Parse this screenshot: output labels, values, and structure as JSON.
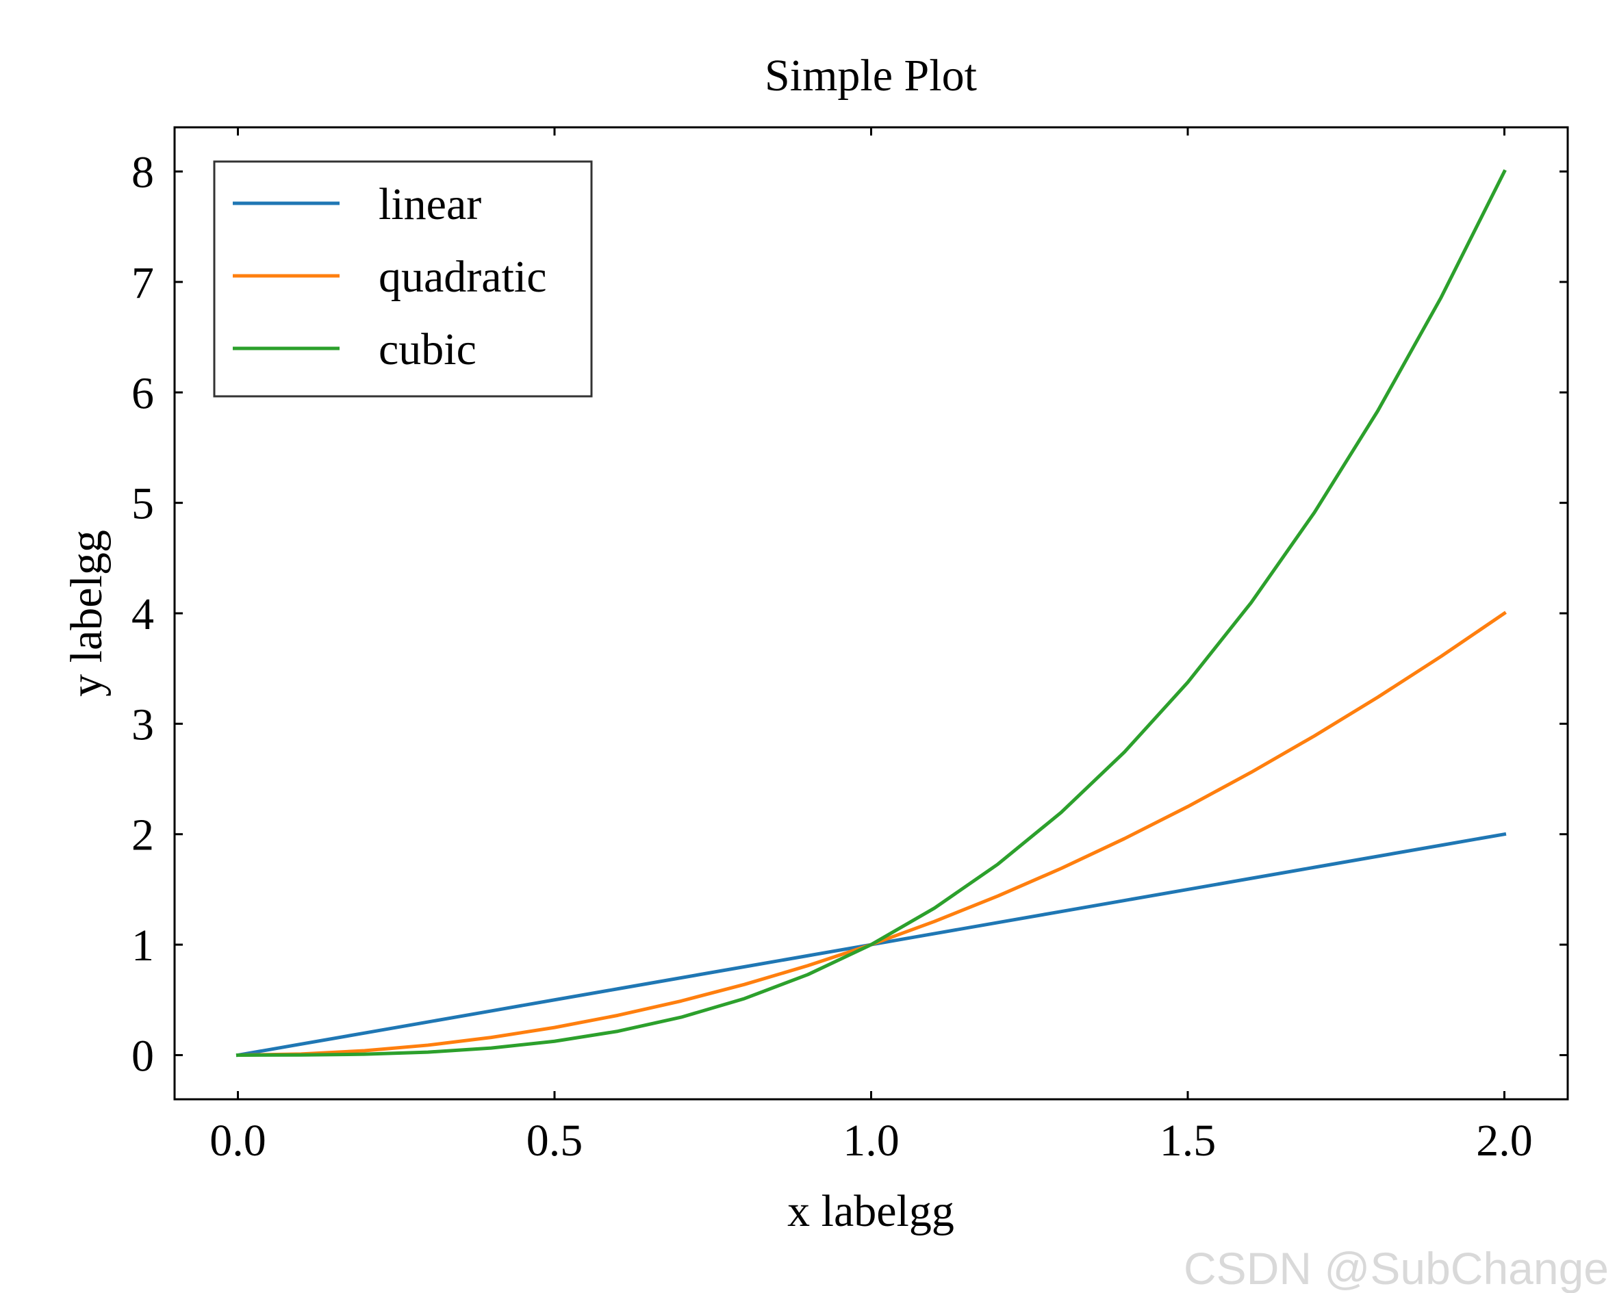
{
  "chart_data": {
    "type": "line",
    "title": "Simple Plot",
    "xlabel": "x labelgg",
    "ylabel": "y labelgg",
    "xlim": [
      -0.1,
      2.1
    ],
    "ylim": [
      -0.4,
      8.4
    ],
    "xticks": [
      0.0,
      0.5,
      1.0,
      1.5,
      2.0
    ],
    "xtick_labels": [
      "0.0",
      "0.5",
      "1.0",
      "1.5",
      "2.0"
    ],
    "yticks": [
      0,
      1,
      2,
      3,
      4,
      5,
      6,
      7,
      8
    ],
    "ytick_labels": [
      "0",
      "1",
      "2",
      "3",
      "4",
      "5",
      "6",
      "7",
      "8"
    ],
    "x": [
      0.0,
      0.1,
      0.2,
      0.3,
      0.4,
      0.5,
      0.6,
      0.7,
      0.8,
      0.9,
      1.0,
      1.1,
      1.2,
      1.3,
      1.4,
      1.5,
      1.6,
      1.7,
      1.8,
      1.9,
      2.0
    ],
    "series": [
      {
        "name": "linear",
        "color": "#1f77b4",
        "values": [
          0.0,
          0.1,
          0.2,
          0.3,
          0.4,
          0.5,
          0.6,
          0.7,
          0.8,
          0.9,
          1.0,
          1.1,
          1.2,
          1.3,
          1.4,
          1.5,
          1.6,
          1.7,
          1.8,
          1.9,
          2.0
        ]
      },
      {
        "name": "quadratic",
        "color": "#ff7f0e",
        "values": [
          0.0,
          0.01,
          0.04,
          0.09,
          0.16,
          0.25,
          0.36,
          0.49,
          0.64,
          0.81,
          1.0,
          1.21,
          1.44,
          1.69,
          1.96,
          2.25,
          2.56,
          2.89,
          3.24,
          3.61,
          4.0
        ]
      },
      {
        "name": "cubic",
        "color": "#2ca02c",
        "values": [
          0.0,
          0.001,
          0.008,
          0.027,
          0.064,
          0.125,
          0.216,
          0.343,
          0.512,
          0.729,
          1.0,
          1.331,
          1.728,
          2.197,
          2.744,
          3.375,
          4.096,
          4.913,
          5.832,
          6.859,
          8.0
        ]
      }
    ],
    "grid": false,
    "legend_position": "top-left",
    "tick_direction": "in"
  },
  "watermark": "CSDN @SubChange"
}
